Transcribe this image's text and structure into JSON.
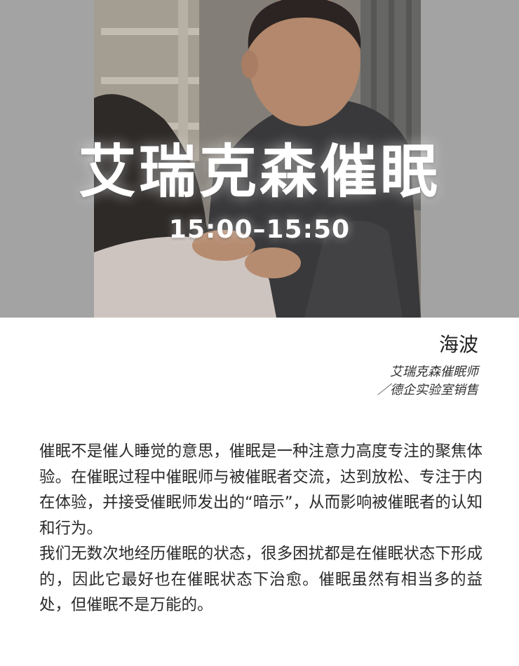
{
  "hero": {
    "title": "艾瑞克森催眠",
    "time": "15:00–15:50",
    "photo": "photo of a man placing his hands on a woman's shoulders"
  },
  "speaker": {
    "name": "海波",
    "role_line1": "艾瑞克森催眠师",
    "role_line2": "／德企实验室销售"
  },
  "body": {
    "paragraph1": "催眠不是催人睡觉的意思，催眠是一种注意力高度专注的聚焦体验。在催眠过程中催眠师与被催眠者交流，达到放松、专注于内在体验，并接受催眠师发出的“暗示”，从而影响被催眠者的认知和行为。",
    "paragraph2": "我们无数次地经历催眠的状态，很多困扰都是在催眠状态下形成的，因此它最好也在催眠状态下治愈。催眠虽然有相当多的益处，但催眠不是万能的。"
  },
  "colors": {
    "band": "#a3a3a3",
    "title": "#ffffff",
    "text": "#2a2a2a"
  }
}
